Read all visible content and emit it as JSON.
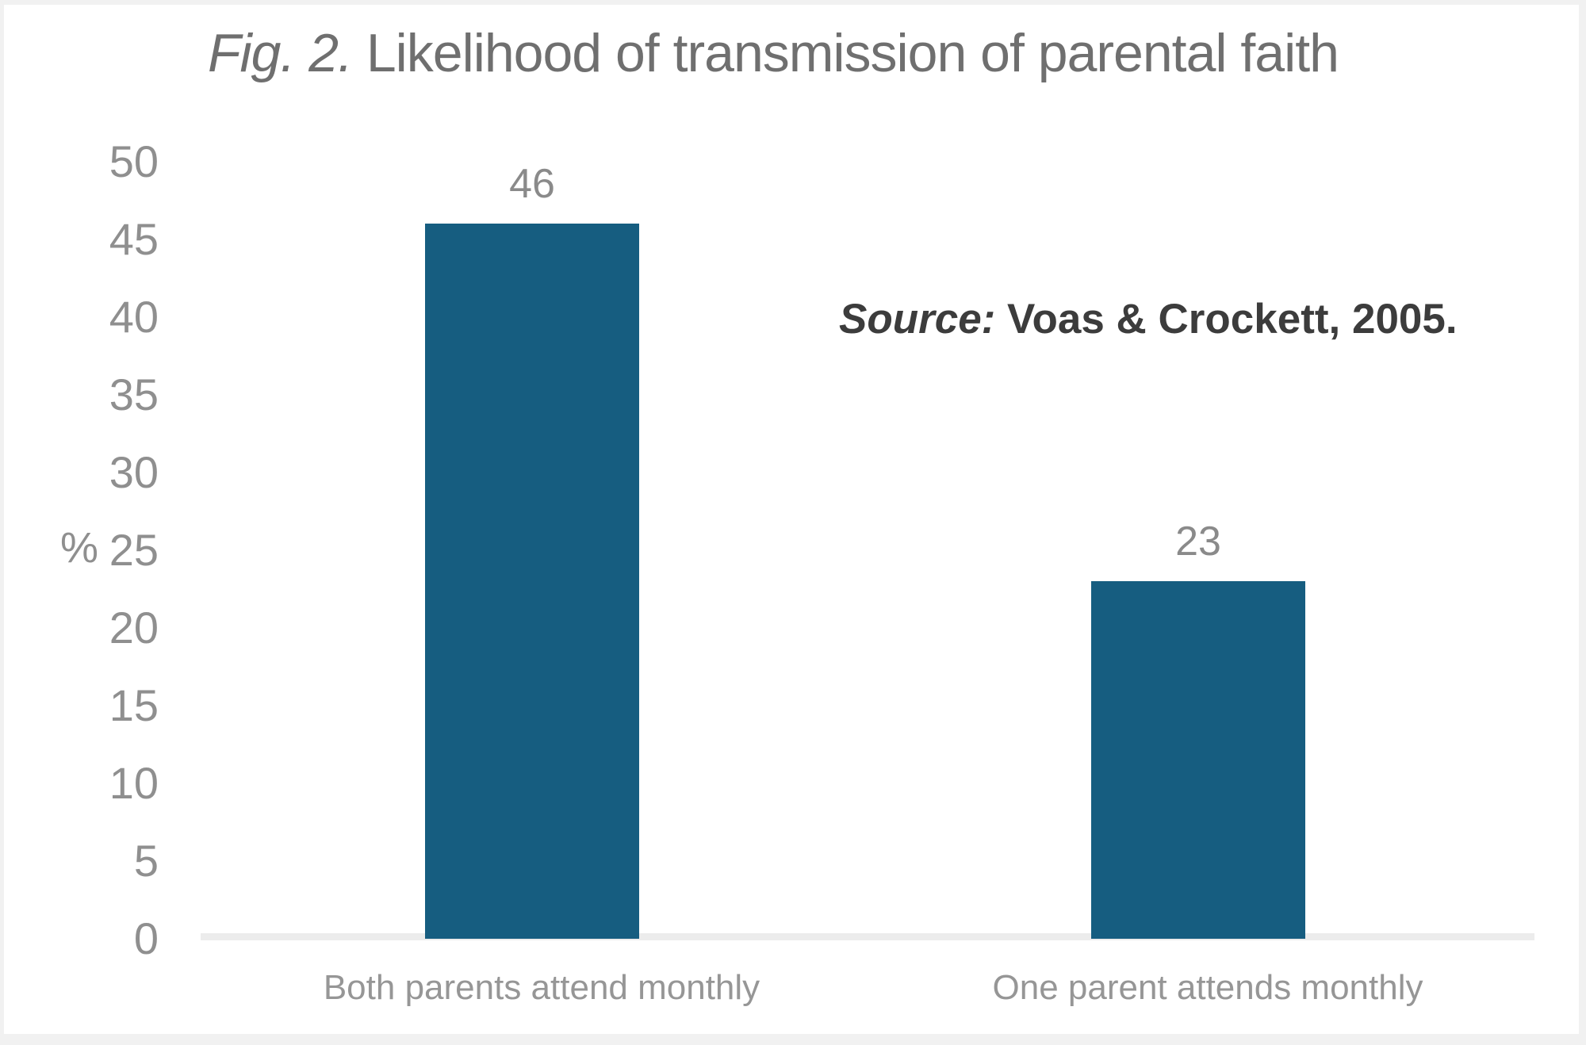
{
  "figure": {
    "title_prefix": "Fig. 2.",
    "title_rest": " Likelihood of transmission of parental faith",
    "source_prefix": "Source:",
    "source_rest": " Voas & Crockett, 2005."
  },
  "chart_data": {
    "type": "bar",
    "title": "Fig. 2. Likelihood of transmission of parental faith",
    "annotation": "Source: Voas & Crockett, 2005.",
    "categories": [
      "Both parents attend monthly",
      "One parent attends monthly"
    ],
    "values": [
      46,
      23
    ],
    "value_labels": [
      "46",
      "23"
    ],
    "xlabel": "",
    "ylabel": "%",
    "ylim": [
      0,
      50
    ],
    "yticks": [
      0,
      5,
      10,
      15,
      20,
      25,
      30,
      35,
      40,
      45,
      50
    ],
    "grid": false,
    "legend": null,
    "bar_color": "#165d80",
    "axis_line_color": "#ececec",
    "tick_label_color": "#8f8f8f"
  }
}
